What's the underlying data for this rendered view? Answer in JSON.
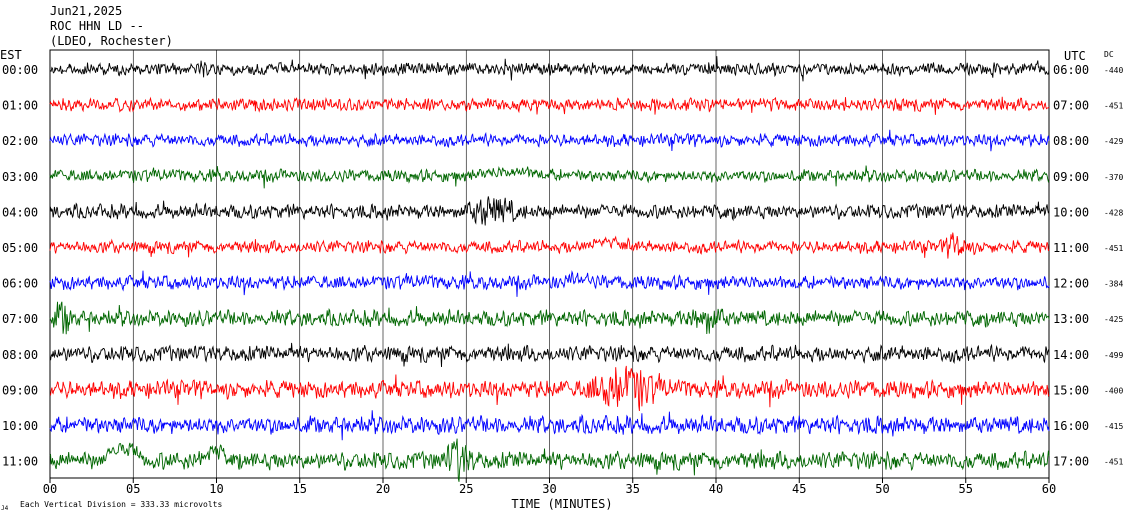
{
  "header": {
    "date": "Jun21,2025",
    "station": "ROC HHN LD --",
    "network": "(LDEO, Rochester)"
  },
  "left_axis_title": "EST",
  "right_axis_title": "UTC",
  "dc_title": "DC",
  "xlabel": "TIME (MINUTES)",
  "scale_note": "Each Vertical Division =  333.33 microvolts",
  "corner_mark": "J4",
  "chart_data": {
    "type": "line",
    "title": "",
    "xlabel": "TIME (MINUTES)",
    "x_range": [
      0,
      60
    ],
    "x_ticks": [
      "00",
      "05",
      "10",
      "15",
      "20",
      "25",
      "30",
      "35",
      "40",
      "45",
      "50",
      "55",
      "60"
    ],
    "vertical_grid": true,
    "trace_colors": [
      "#000000",
      "#ff0000",
      "#0000ff",
      "#006600"
    ],
    "traces": [
      {
        "est": "00:00",
        "utc": "06:00",
        "dc": "-440",
        "color": "#000000",
        "amplitude": 7,
        "events": []
      },
      {
        "est": "01:00",
        "utc": "07:00",
        "dc": "-451",
        "color": "#ff0000",
        "amplitude": 7,
        "events": []
      },
      {
        "est": "02:00",
        "utc": "08:00",
        "dc": "-429",
        "color": "#0000ff",
        "amplitude": 7,
        "events": []
      },
      {
        "est": "03:00",
        "utc": "09:00",
        "dc": "-370",
        "color": "#006600",
        "amplitude": 7,
        "events": [
          {
            "minute": 28,
            "shift": -4,
            "width": 2
          }
        ]
      },
      {
        "est": "04:00",
        "utc": "10:00",
        "dc": "-428",
        "color": "#000000",
        "amplitude": 8,
        "events": [
          {
            "minute": 26.5,
            "amp": 14,
            "width": 1.2
          }
        ]
      },
      {
        "est": "05:00",
        "utc": "11:00",
        "dc": "-451",
        "color": "#ff0000",
        "amplitude": 7,
        "events": [
          {
            "minute": 33.5,
            "shift": -6,
            "width": 1.2
          },
          {
            "minute": 54.5,
            "amp": 12,
            "width": 0.6
          }
        ]
      },
      {
        "est": "06:00",
        "utc": "12:00",
        "dc": "-384",
        "color": "#0000ff",
        "amplitude": 8,
        "events": [
          {
            "minute": 31.8,
            "shift": -6,
            "width": 0.8
          }
        ]
      },
      {
        "est": "07:00",
        "utc": "13:00",
        "dc": "-425",
        "color": "#006600",
        "amplitude": 9,
        "events": [
          {
            "minute": 0.8,
            "amp": 14,
            "width": 0.5
          },
          {
            "minute": 39.5,
            "amp": 14,
            "width": 0.7
          }
        ]
      },
      {
        "est": "08:00",
        "utc": "14:00",
        "dc": "-499",
        "color": "#000000",
        "amplitude": 9,
        "events": []
      },
      {
        "est": "09:00",
        "utc": "15:00",
        "dc": "-400",
        "color": "#ff0000",
        "amplitude": 10,
        "events": [
          {
            "minute": 34.5,
            "amp": 22,
            "width": 1.6
          }
        ]
      },
      {
        "est": "10:00",
        "utc": "16:00",
        "dc": "-415",
        "color": "#0000ff",
        "amplitude": 10,
        "events": []
      },
      {
        "est": "11:00",
        "utc": "17:00",
        "dc": "-451",
        "color": "#006600",
        "amplitude": 10,
        "events": [
          {
            "minute": 4.5,
            "shift": -12,
            "width": 0.9
          },
          {
            "minute": 10,
            "shift": -8,
            "width": 1
          },
          {
            "minute": 24.5,
            "amp": 16,
            "width": 0.7
          }
        ]
      }
    ]
  }
}
